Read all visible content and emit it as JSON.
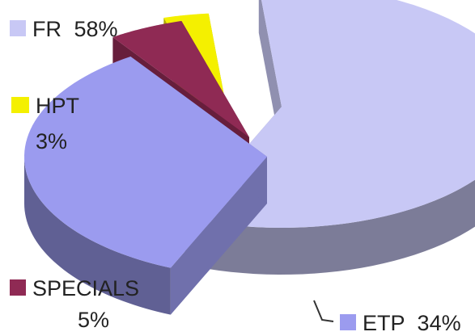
{
  "chart_data": {
    "type": "pie",
    "style": "3d-exploded",
    "slices": [
      {
        "label": "FR",
        "value": 58,
        "display": "58%",
        "color": "#c8c8f5"
      },
      {
        "label": "ETP",
        "value": 34,
        "display": "34%",
        "color": "#9b9bef"
      },
      {
        "label": "SPECIALS",
        "value": 5,
        "display": "5%",
        "color": "#8f2a54"
      },
      {
        "label": "HPT",
        "value": 3,
        "display": "3%",
        "color": "#f4f000"
      }
    ],
    "legend_placement": "labels-around-pie"
  }
}
